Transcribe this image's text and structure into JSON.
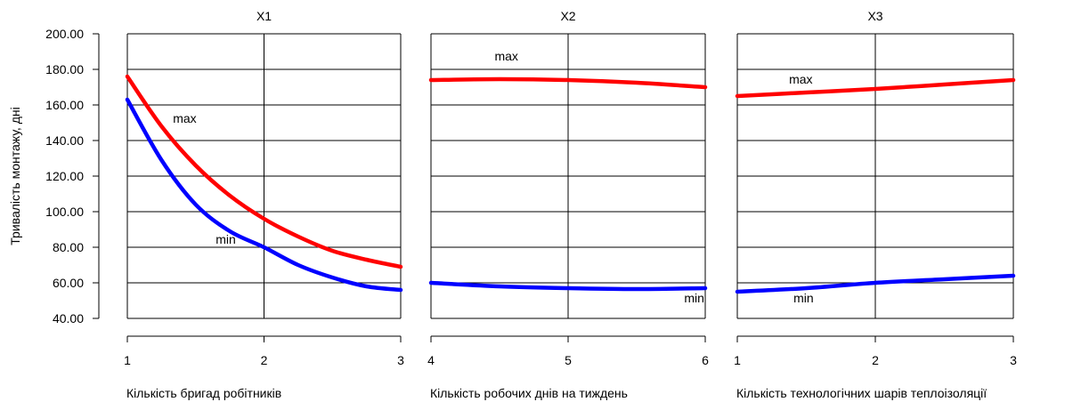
{
  "y_axis_label": "Тривалість монтажу, дні",
  "colors": {
    "max": "#ff0000",
    "min": "#0000ff",
    "grid": "#000000"
  },
  "chart_data": {
    "type": "line",
    "ylim": [
      40,
      200
    ],
    "y_ticks": [
      "40.00",
      "60.00",
      "80.00",
      "100.00",
      "120.00",
      "140.00",
      "160.00",
      "180.00",
      "200.00"
    ],
    "grid": true,
    "panels": [
      {
        "title": "X1",
        "xlabel": "Кількість бригад робітників",
        "xlim": [
          1,
          3
        ],
        "x_ticks": [
          "1",
          "2",
          "3"
        ],
        "series": [
          {
            "name": "max",
            "x": [
              1,
              1.25,
              1.5,
              1.75,
              2,
              2.25,
              2.5,
              2.75,
              3
            ],
            "values": [
              176,
              148,
              126,
              109,
              96,
              86,
              78,
              73,
              69
            ]
          },
          {
            "name": "min",
            "x": [
              1,
              1.25,
              1.5,
              1.75,
              2,
              2.25,
              2.5,
              2.75,
              3
            ],
            "values": [
              163,
              129,
              104,
              89,
              80,
              70,
              63,
              58,
              56
            ]
          }
        ],
        "annotations": [
          {
            "text": "max",
            "x": 1.42,
            "y": 150
          },
          {
            "text": "min",
            "x": 1.72,
            "y": 82
          }
        ]
      },
      {
        "title": "X2",
        "xlabel": "Кількість робочих днів на тиждень",
        "xlim": [
          4,
          6
        ],
        "x_ticks": [
          "4",
          "5",
          "6"
        ],
        "series": [
          {
            "name": "max",
            "x": [
              4,
              4.5,
              5,
              5.5,
              6
            ],
            "values": [
              174,
              174.5,
              174,
              172.5,
              170
            ]
          },
          {
            "name": "min",
            "x": [
              4,
              4.5,
              5,
              5.5,
              6
            ],
            "values": [
              60,
              58,
              57,
              56.5,
              57
            ]
          }
        ],
        "annotations": [
          {
            "text": "max",
            "x": 4.55,
            "y": 185
          },
          {
            "text": "min",
            "x": 5.92,
            "y": 49
          }
        ]
      },
      {
        "title": "X3",
        "xlabel": "Кількість технологічних шарів теплоізоляції",
        "xlim": [
          1,
          3
        ],
        "x_ticks": [
          "1",
          "2",
          "3"
        ],
        "series": [
          {
            "name": "max",
            "x": [
              1,
              1.5,
              2,
              2.5,
              3
            ],
            "values": [
              165,
              167,
              169,
              171.5,
              174
            ]
          },
          {
            "name": "min",
            "x": [
              1,
              1.5,
              2,
              2.5,
              3
            ],
            "values": [
              55,
              57,
              60,
              62,
              64
            ]
          }
        ],
        "annotations": [
          {
            "text": "max",
            "x": 1.46,
            "y": 172
          },
          {
            "text": "min",
            "x": 1.48,
            "y": 49
          }
        ]
      }
    ]
  }
}
